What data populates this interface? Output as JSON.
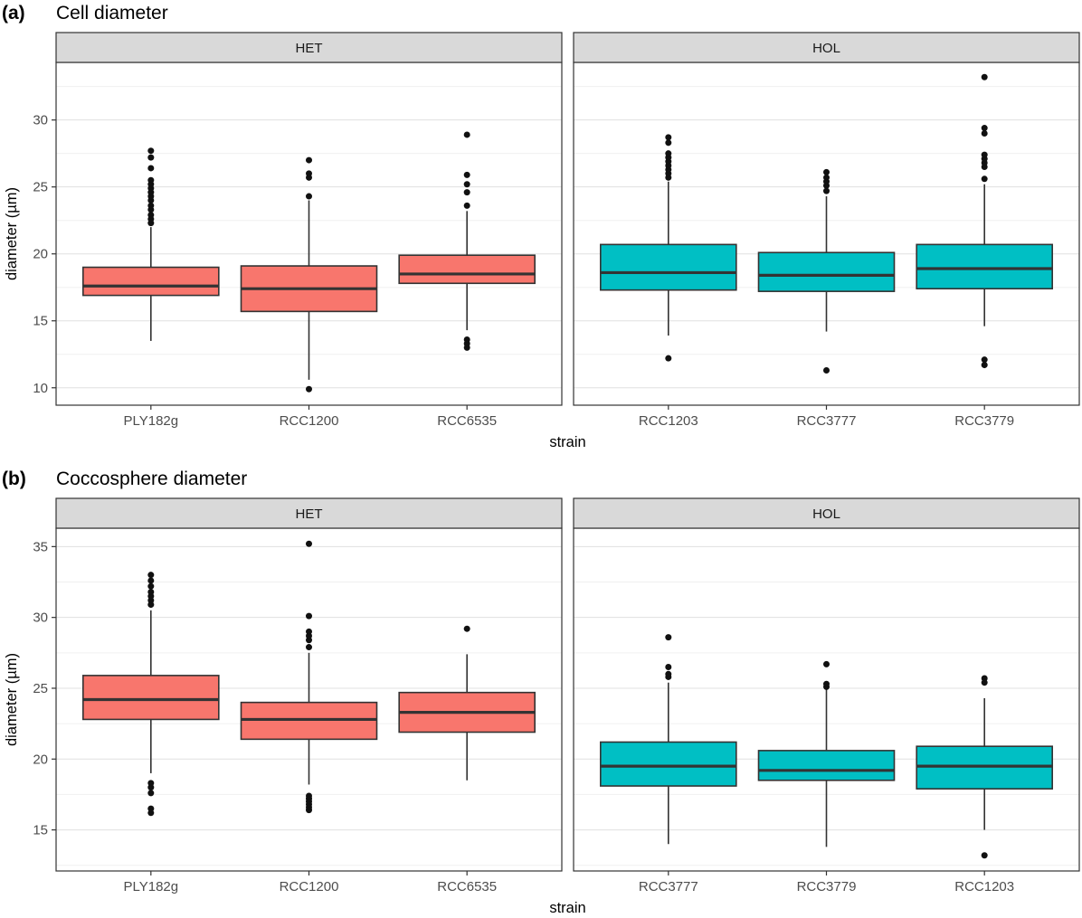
{
  "page": {
    "background": "#FFFFFF"
  },
  "styles": {
    "strip_fill": "#D9D9D9",
    "strip_text_color": "#1A1A1A",
    "panel_fill": "#FFFFFF",
    "panel_border": "#333333",
    "grid_major": "#E0E0E0",
    "grid_minor": "#F0F0F0",
    "axis_text": "#4D4D4D",
    "axis_title": "#000000",
    "box_stroke": "#333333",
    "outlier_color": "#111111",
    "het_fill": "#F8766D",
    "hol_fill": "#00BFC4"
  },
  "chart_data": [
    {
      "type": "boxplot",
      "tag": "(a)",
      "title": "Cell diameter",
      "xlabel": "strain",
      "ylabel": "diameter (µm)",
      "ylim": [
        8.7,
        34.3
      ],
      "yticks": [
        10,
        15,
        20,
        25,
        30
      ],
      "grid": true,
      "legend": "none",
      "facets": [
        {
          "label": "HET",
          "color_key": "het_fill",
          "categories": [
            "PLY182g",
            "RCC1200",
            "RCC6535"
          ],
          "boxes": [
            {
              "whislo": 13.5,
              "q1": 16.9,
              "med": 17.6,
              "q3": 19.0,
              "whishi": 22.0,
              "outliers": [
                22.3,
                22.6,
                22.9,
                23.3,
                23.6,
                24.0,
                24.3,
                24.6,
                24.9,
                25.2,
                25.5,
                26.4,
                27.2,
                27.7
              ]
            },
            {
              "whislo": 10.6,
              "q1": 15.7,
              "med": 17.4,
              "q3": 19.1,
              "whishi": 24.0,
              "outliers": [
                9.9,
                24.3,
                25.7,
                26.0,
                27.0
              ]
            },
            {
              "whislo": 14.3,
              "q1": 17.8,
              "med": 18.5,
              "q3": 19.9,
              "whishi": 23.2,
              "outliers": [
                13.0,
                13.3,
                13.6,
                23.6,
                24.6,
                25.2,
                25.9,
                28.9
              ]
            }
          ]
        },
        {
          "label": "HOL",
          "color_key": "hol_fill",
          "categories": [
            "RCC1203",
            "RCC3777",
            "RCC3779"
          ],
          "boxes": [
            {
              "whislo": 13.9,
              "q1": 17.3,
              "med": 18.6,
              "q3": 20.7,
              "whishi": 25.4,
              "outliers": [
                12.2,
                25.7,
                26.0,
                26.3,
                26.6,
                26.9,
                27.2,
                27.5,
                28.3,
                28.7
              ]
            },
            {
              "whislo": 14.2,
              "q1": 17.2,
              "med": 18.4,
              "q3": 20.1,
              "whishi": 24.3,
              "outliers": [
                11.3,
                24.7,
                25.1,
                25.4,
                25.7,
                26.1
              ]
            },
            {
              "whislo": 14.6,
              "q1": 17.4,
              "med": 18.9,
              "q3": 20.7,
              "whishi": 25.2,
              "outliers": [
                11.7,
                12.1,
                25.6,
                26.5,
                26.8,
                27.1,
                27.4,
                29.0,
                29.4,
                33.2
              ]
            }
          ]
        }
      ]
    },
    {
      "type": "boxplot",
      "tag": "(b)",
      "title": "Coccosphere diameter",
      "xlabel": "strain",
      "ylabel": "diameter (µm)",
      "ylim": [
        12.1,
        36.3
      ],
      "yticks": [
        15,
        20,
        25,
        30,
        35
      ],
      "grid": true,
      "legend": "none",
      "facets": [
        {
          "label": "HET",
          "color_key": "het_fill",
          "categories": [
            "PLY182g",
            "RCC1200",
            "RCC6535"
          ],
          "boxes": [
            {
              "whislo": 19.0,
              "q1": 22.8,
              "med": 24.2,
              "q3": 25.9,
              "whishi": 30.5,
              "outliers": [
                16.2,
                16.5,
                17.6,
                18.0,
                18.3,
                30.9,
                31.2,
                31.5,
                31.8,
                32.2,
                32.6,
                33.0
              ]
            },
            {
              "whislo": 18.2,
              "q1": 21.4,
              "med": 22.8,
              "q3": 24.0,
              "whishi": 27.5,
              "outliers": [
                16.4,
                16.6,
                16.8,
                17.0,
                17.2,
                17.4,
                27.9,
                28.4,
                28.7,
                29.0,
                30.1,
                35.2
              ]
            },
            {
              "whislo": 18.5,
              "q1": 21.9,
              "med": 23.3,
              "q3": 24.7,
              "whishi": 27.4,
              "outliers": [
                29.2
              ]
            }
          ]
        },
        {
          "label": "HOL",
          "color_key": "hol_fill",
          "categories": [
            "RCC3777",
            "RCC3779",
            "RCC1203"
          ],
          "boxes": [
            {
              "whislo": 14.0,
              "q1": 18.1,
              "med": 19.5,
              "q3": 21.2,
              "whishi": 25.4,
              "outliers": [
                25.8,
                26.0,
                26.5,
                28.6
              ]
            },
            {
              "whislo": 13.8,
              "q1": 18.5,
              "med": 19.2,
              "q3": 20.6,
              "whishi": 25.0,
              "outliers": [
                25.1,
                25.3,
                26.7
              ]
            },
            {
              "whislo": 15.0,
              "q1": 17.9,
              "med": 19.5,
              "q3": 20.9,
              "whishi": 24.3,
              "outliers": [
                13.2,
                25.4,
                25.7
              ]
            }
          ]
        }
      ]
    }
  ]
}
